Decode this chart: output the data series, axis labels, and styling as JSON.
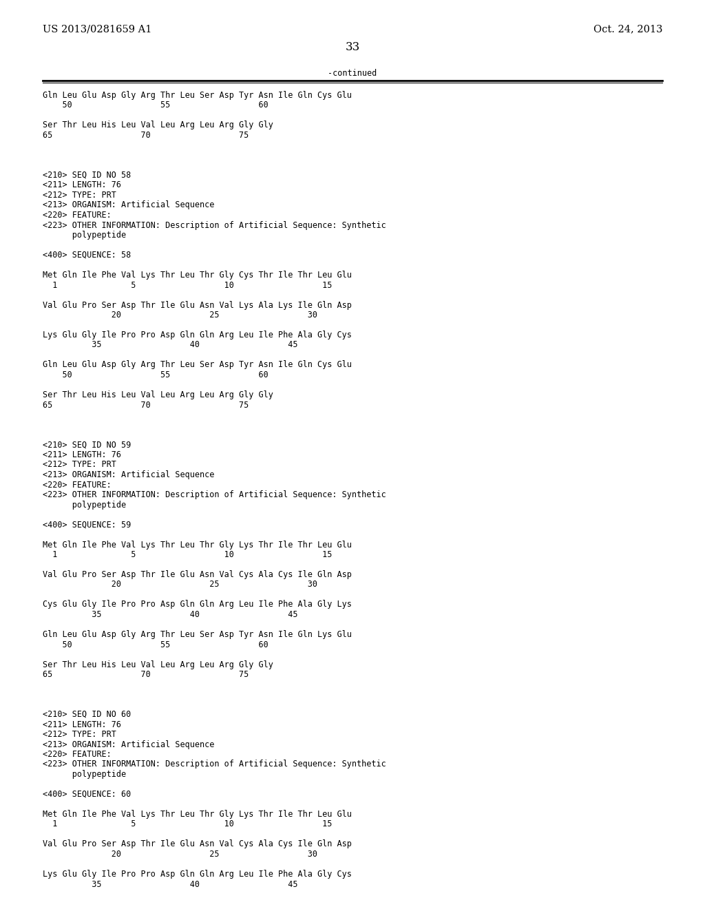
{
  "header_left": "US 2013/0281659 A1",
  "header_right": "Oct. 24, 2013",
  "page_number": "33",
  "continued_label": "-continued",
  "background_color": "#ffffff",
  "text_color": "#000000",
  "lines": [
    "Gln Leu Glu Asp Gly Arg Thr Leu Ser Asp Tyr Asn Ile Gln Cys Glu",
    "    50                  55                  60",
    "",
    "Ser Thr Leu His Leu Val Leu Arg Leu Arg Gly Gly",
    "65                  70                  75",
    "",
    "",
    "",
    "<210> SEQ ID NO 58",
    "<211> LENGTH: 76",
    "<212> TYPE: PRT",
    "<213> ORGANISM: Artificial Sequence",
    "<220> FEATURE:",
    "<223> OTHER INFORMATION: Description of Artificial Sequence: Synthetic",
    "      polypeptide",
    "",
    "<400> SEQUENCE: 58",
    "",
    "Met Gln Ile Phe Val Lys Thr Leu Thr Gly Cys Thr Ile Thr Leu Glu",
    "  1               5                  10                  15",
    "",
    "Val Glu Pro Ser Asp Thr Ile Glu Asn Val Lys Ala Lys Ile Gln Asp",
    "              20                  25                  30",
    "",
    "Lys Glu Gly Ile Pro Pro Asp Gln Gln Arg Leu Ile Phe Ala Gly Cys",
    "          35                  40                  45",
    "",
    "Gln Leu Glu Asp Gly Arg Thr Leu Ser Asp Tyr Asn Ile Gln Cys Glu",
    "    50                  55                  60",
    "",
    "Ser Thr Leu His Leu Val Leu Arg Leu Arg Gly Gly",
    "65                  70                  75",
    "",
    "",
    "",
    "<210> SEQ ID NO 59",
    "<211> LENGTH: 76",
    "<212> TYPE: PRT",
    "<213> ORGANISM: Artificial Sequence",
    "<220> FEATURE:",
    "<223> OTHER INFORMATION: Description of Artificial Sequence: Synthetic",
    "      polypeptide",
    "",
    "<400> SEQUENCE: 59",
    "",
    "Met Gln Ile Phe Val Lys Thr Leu Thr Gly Lys Thr Ile Thr Leu Glu",
    "  1               5                  10                  15",
    "",
    "Val Glu Pro Ser Asp Thr Ile Glu Asn Val Cys Ala Cys Ile Gln Asp",
    "              20                  25                  30",
    "",
    "Cys Glu Gly Ile Pro Pro Asp Gln Gln Arg Leu Ile Phe Ala Gly Lys",
    "          35                  40                  45",
    "",
    "Gln Leu Glu Asp Gly Arg Thr Leu Ser Asp Tyr Asn Ile Gln Lys Glu",
    "    50                  55                  60",
    "",
    "Ser Thr Leu His Leu Val Leu Arg Leu Arg Gly Gly",
    "65                  70                  75",
    "",
    "",
    "",
    "<210> SEQ ID NO 60",
    "<211> LENGTH: 76",
    "<212> TYPE: PRT",
    "<213> ORGANISM: Artificial Sequence",
    "<220> FEATURE:",
    "<223> OTHER INFORMATION: Description of Artificial Sequence: Synthetic",
    "      polypeptide",
    "",
    "<400> SEQUENCE: 60",
    "",
    "Met Gln Ile Phe Val Lys Thr Leu Thr Gly Lys Thr Ile Thr Leu Glu",
    "  1               5                  10                  15",
    "",
    "Val Glu Pro Ser Asp Thr Ile Glu Asn Val Cys Ala Cys Ile Gln Asp",
    "              20                  25                  30",
    "",
    "Lys Glu Gly Ile Pro Pro Asp Gln Gln Arg Leu Ile Phe Ala Gly Cys",
    "          35                  40                  45"
  ],
  "mono_fontsize": 8.5,
  "header_fontsize": 10.5,
  "page_num_fontsize": 12
}
